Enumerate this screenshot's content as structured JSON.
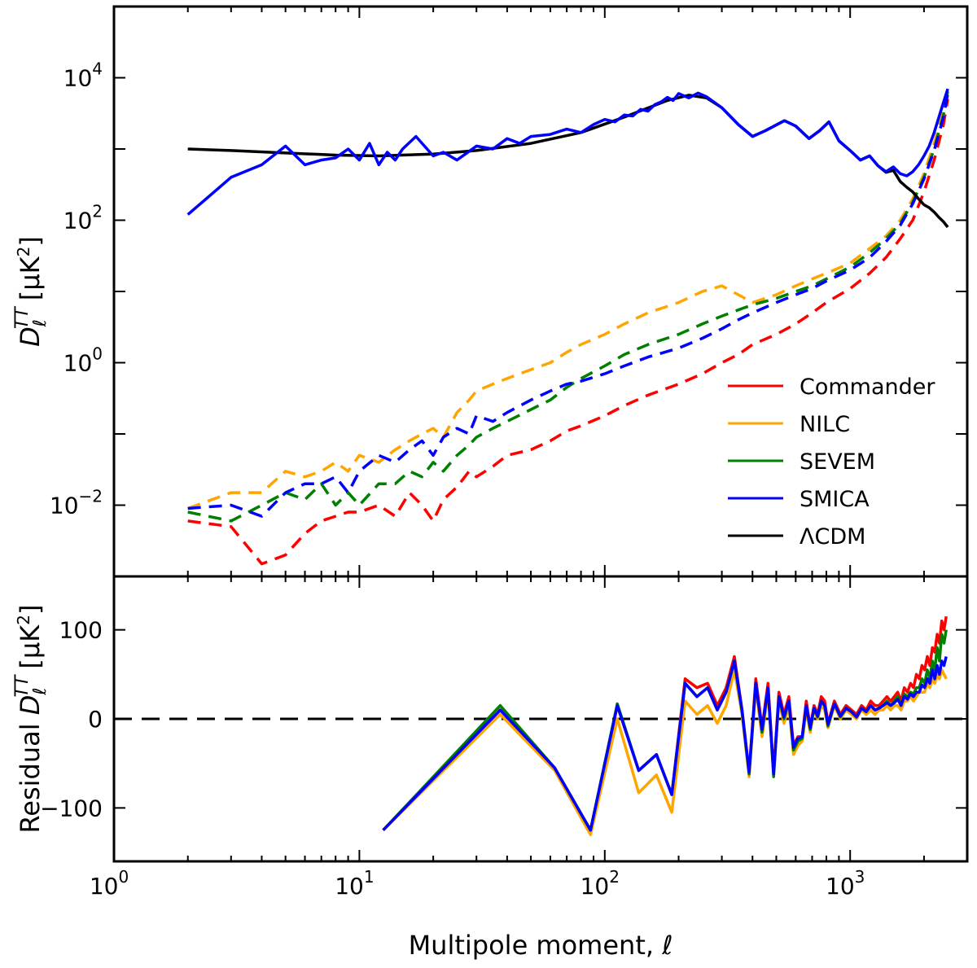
{
  "chart_data": [
    {
      "panel": "top",
      "type": "line",
      "xscale": "log",
      "yscale": "log",
      "xlim": [
        1,
        3000
      ],
      "ylim": [
        0.001,
        100000
      ],
      "xlabel": "",
      "ylabel": "D",
      "ylabel_sub": "ℓ",
      "ylabel_sup": "TT",
      "ylabel_unit_pre": "[μK",
      "ylabel_unit_sup": "2",
      "ylabel_unit_post": "]",
      "y_ticks": [
        {
          "value": 0.01,
          "base": "10",
          "exp": "−2"
        },
        {
          "value": 1,
          "base": "10",
          "exp": "0"
        },
        {
          "value": 100,
          "base": "10",
          "exp": "2"
        },
        {
          "value": 10000,
          "base": "10",
          "exp": "4"
        }
      ],
      "legend_position": "lower-right",
      "legend": [
        {
          "name": "Commander",
          "color": "#ff0000"
        },
        {
          "name": "NILC",
          "color": "#ffa500"
        },
        {
          "name": "SEVEM",
          "color": "#008000"
        },
        {
          "name": "SMICA",
          "color": "#0000ff"
        },
        {
          "name": "ΛCDM",
          "color": "#000000"
        }
      ],
      "series": [
        {
          "name": "ΛCDM",
          "color": "#000000",
          "style": "solid",
          "x": [
            2,
            3,
            5,
            8,
            12,
            20,
            30,
            50,
            80,
            120,
            180,
            220,
            260,
            300,
            350,
            400,
            450,
            540,
            600,
            680,
            750,
            820,
            900,
            1000,
            1100,
            1200,
            1300,
            1400,
            1500,
            1600,
            1700,
            1800,
            1900,
            2000,
            2100,
            2200,
            2300,
            2400,
            2500
          ],
          "y": [
            1000,
            950,
            880,
            820,
            800,
            850,
            950,
            1200,
            1700,
            2800,
            4800,
            5700,
            5200,
            3800,
            2200,
            1500,
            1800,
            2500,
            2100,
            1400,
            1800,
            2400,
            1300,
            950,
            700,
            800,
            580,
            470,
            500,
            350,
            290,
            250,
            200,
            165,
            150,
            130,
            110,
            95,
            80
          ]
        },
        {
          "name": "SMICA",
          "color": "#0000ff",
          "style": "solid",
          "x": [
            2,
            3,
            4,
            5,
            6,
            7,
            8,
            9,
            10,
            11,
            12,
            13,
            14,
            15,
            17,
            20,
            22,
            25,
            30,
            35,
            40,
            45,
            50,
            60,
            70,
            80,
            90,
            100,
            110,
            120,
            130,
            140,
            150,
            160,
            170,
            180,
            190,
            200,
            220,
            240,
            260,
            300,
            350,
            400,
            450,
            540,
            600,
            680,
            750,
            820,
            900,
            1000,
            1100,
            1200,
            1300,
            1400,
            1500,
            1600,
            1700,
            1800,
            1900,
            2000,
            2100,
            2200,
            2300,
            2400,
            2500
          ],
          "y": [
            120,
            400,
            600,
            1100,
            600,
            700,
            750,
            1000,
            700,
            1200,
            600,
            900,
            700,
            1000,
            1500,
            800,
            900,
            700,
            1100,
            1000,
            1400,
            1200,
            1500,
            1600,
            1900,
            1700,
            2200,
            2600,
            2400,
            3000,
            2900,
            3600,
            3400,
            4200,
            4600,
            5300,
            4800,
            6000,
            5200,
            6100,
            5400,
            3800,
            2200,
            1500,
            1800,
            2500,
            2100,
            1400,
            1800,
            2400,
            1300,
            950,
            700,
            800,
            580,
            480,
            560,
            450,
            420,
            480,
            600,
            800,
            1100,
            1700,
            2800,
            4500,
            7000
          ]
        },
        {
          "name": "Commander",
          "color": "#ff0000",
          "style": "dashed",
          "x": [
            2,
            3,
            4,
            5,
            6,
            7,
            8,
            9,
            10,
            12,
            14,
            16,
            18,
            20,
            22,
            25,
            28,
            30,
            35,
            40,
            50,
            60,
            70,
            80,
            100,
            120,
            150,
            200,
            250,
            300,
            350,
            400,
            500,
            600,
            700,
            800,
            1000,
            1200,
            1400,
            1600,
            1800,
            2000,
            2200,
            2400,
            2500
          ],
          "y": [
            0.006,
            0.005,
            0.0015,
            0.002,
            0.004,
            0.006,
            0.007,
            0.008,
            0.008,
            0.01,
            0.007,
            0.015,
            0.01,
            0.006,
            0.012,
            0.018,
            0.03,
            0.025,
            0.035,
            0.05,
            0.06,
            0.08,
            0.11,
            0.13,
            0.18,
            0.25,
            0.35,
            0.5,
            0.7,
            1.0,
            1.3,
            1.8,
            2.5,
            3.5,
            5,
            7,
            11,
            18,
            30,
            55,
            100,
            250,
            700,
            2200,
            5000
          ]
        },
        {
          "name": "NILC",
          "color": "#ffa500",
          "style": "dashed",
          "x": [
            2,
            3,
            4,
            5,
            6,
            7,
            8,
            9,
            10,
            12,
            14,
            16,
            18,
            20,
            22,
            25,
            28,
            30,
            35,
            40,
            50,
            60,
            70,
            80,
            100,
            120,
            150,
            200,
            250,
            300,
            350,
            400,
            450,
            500,
            600,
            700,
            800,
            1000,
            1200,
            1400,
            1600,
            1800,
            2000,
            2200,
            2400,
            2500
          ],
          "y": [
            0.009,
            0.015,
            0.015,
            0.03,
            0.025,
            0.03,
            0.04,
            0.03,
            0.05,
            0.04,
            0.06,
            0.08,
            0.1,
            0.12,
            0.09,
            0.2,
            0.3,
            0.4,
            0.5,
            0.6,
            0.8,
            1.0,
            1.4,
            1.8,
            2.5,
            3.5,
            5,
            7,
            10,
            12,
            9,
            7,
            8,
            9,
            12,
            15,
            18,
            25,
            40,
            60,
            100,
            200,
            450,
            1200,
            3500,
            7000
          ]
        },
        {
          "name": "SEVEM",
          "color": "#008000",
          "style": "dashed",
          "x": [
            2,
            3,
            4,
            5,
            6,
            7,
            8,
            9,
            10,
            12,
            14,
            16,
            18,
            20,
            22,
            25,
            28,
            30,
            35,
            40,
            50,
            60,
            70,
            80,
            100,
            120,
            150,
            200,
            250,
            300,
            350,
            400,
            500,
            600,
            700,
            800,
            1000,
            1200,
            1400,
            1600,
            1800,
            2000,
            2200,
            2400,
            2500
          ],
          "y": [
            0.008,
            0.006,
            0.01,
            0.015,
            0.012,
            0.02,
            0.01,
            0.015,
            0.01,
            0.02,
            0.02,
            0.03,
            0.025,
            0.04,
            0.03,
            0.05,
            0.07,
            0.09,
            0.12,
            0.15,
            0.22,
            0.3,
            0.45,
            0.6,
            0.9,
            1.3,
            1.8,
            2.5,
            3.5,
            4.5,
            5.5,
            6.5,
            8,
            10,
            12,
            15,
            22,
            35,
            55,
            90,
            180,
            400,
            1000,
            3000,
            6500
          ]
        },
        {
          "name": "SMICA",
          "color": "#0000ff",
          "style": "dashed",
          "x": [
            2,
            3,
            4,
            5,
            6,
            7,
            8,
            9,
            10,
            12,
            14,
            16,
            18,
            20,
            22,
            25,
            28,
            30,
            35,
            40,
            50,
            60,
            70,
            80,
            100,
            120,
            150,
            200,
            250,
            300,
            350,
            400,
            500,
            600,
            700,
            800,
            1000,
            1200,
            1400,
            1600,
            1800,
            2000,
            2200,
            2400,
            2500
          ],
          "y": [
            0.009,
            0.01,
            0.007,
            0.015,
            0.02,
            0.02,
            0.025,
            0.015,
            0.03,
            0.05,
            0.04,
            0.06,
            0.08,
            0.05,
            0.09,
            0.12,
            0.1,
            0.18,
            0.15,
            0.2,
            0.3,
            0.4,
            0.5,
            0.55,
            0.7,
            0.9,
            1.2,
            1.6,
            2.2,
            3,
            4,
            5,
            7,
            9,
            11,
            14,
            20,
            30,
            50,
            85,
            170,
            380,
            950,
            2800,
            6000
          ]
        }
      ]
    },
    {
      "panel": "bottom",
      "type": "line",
      "xscale": "log",
      "yscale": "linear",
      "xlim": [
        1,
        3000
      ],
      "ylim": [
        -160,
        160
      ],
      "xlabel_text": "Multipole moment, ",
      "xlabel_symbol": "ℓ",
      "ylabel_pre": "Residual ",
      "ylabel": "D",
      "ylabel_sub": "ℓ",
      "ylabel_sup": "TT",
      "ylabel_unit_pre": "[μK",
      "ylabel_unit_sup": "2",
      "ylabel_unit_post": "]",
      "y_ticks": [
        {
          "value": -100,
          "label": "−100"
        },
        {
          "value": 0,
          "label": "0"
        },
        {
          "value": 100,
          "label": "100"
        }
      ],
      "x_ticks": [
        {
          "value": 1,
          "base": "10",
          "exp": "0"
        },
        {
          "value": 10,
          "base": "10",
          "exp": "1"
        },
        {
          "value": 100,
          "base": "10",
          "exp": "2"
        },
        {
          "value": 1000,
          "base": "10",
          "exp": "3"
        }
      ],
      "zero_line": {
        "value": 0,
        "style": "dashed",
        "color": "#000000"
      },
      "x": [
        12.5,
        37.5,
        62.5,
        87.5,
        112.5,
        137.5,
        162.5,
        187.5,
        212.5,
        237.5,
        262.5,
        287.5,
        312.5,
        337.5,
        362.5,
        387.5,
        412.5,
        437.5,
        462.5,
        487.5,
        512.5,
        537.5,
        562.5,
        587.5,
        612.5,
        637.5,
        662.5,
        687.5,
        712.5,
        737.5,
        762.5,
        787.5,
        812.5,
        862.5,
        912.5,
        962.5,
        1012.5,
        1062.5,
        1112.5,
        1162.5,
        1212.5,
        1262.5,
        1312.5,
        1362.5,
        1412.5,
        1462.5,
        1512.5,
        1562.5,
        1612.5,
        1662.5,
        1712.5,
        1762.5,
        1812.5,
        1862.5,
        1912.5,
        1962.5,
        2012.5,
        2062.5,
        2112.5,
        2162.5,
        2212.5,
        2262.5,
        2312.5,
        2362.5,
        2412.5,
        2462.5
      ],
      "series": [
        {
          "name": "Commander",
          "color": "#ff0000",
          "y": [
            -125,
            10,
            -55,
            -125,
            15,
            -58,
            -40,
            -85,
            45,
            35,
            40,
            15,
            35,
            70,
            10,
            -60,
            45,
            -10,
            40,
            -60,
            30,
            5,
            25,
            -30,
            -20,
            -20,
            20,
            -10,
            15,
            5,
            25,
            20,
            -5,
            20,
            5,
            15,
            10,
            5,
            15,
            10,
            20,
            15,
            15,
            20,
            25,
            20,
            25,
            30,
            20,
            35,
            30,
            40,
            35,
            50,
            45,
            60,
            55,
            70,
            60,
            80,
            75,
            95,
            85,
            110,
            100,
            115
          ]
        },
        {
          "name": "NILC",
          "color": "#ffa500",
          "y": [
            -125,
            5,
            -58,
            -130,
            0,
            -83,
            -63,
            -105,
            20,
            5,
            15,
            -5,
            15,
            55,
            5,
            -65,
            35,
            -20,
            30,
            -60,
            20,
            -5,
            15,
            -40,
            -30,
            -25,
            10,
            -15,
            10,
            0,
            15,
            10,
            -10,
            15,
            0,
            10,
            5,
            0,
            10,
            5,
            10,
            5,
            10,
            10,
            15,
            10,
            15,
            15,
            10,
            20,
            20,
            25,
            20,
            25,
            30,
            30,
            30,
            40,
            35,
            45,
            40,
            50,
            45,
            55,
            50,
            45
          ]
        },
        {
          "name": "SEVEM",
          "color": "#008000",
          "y": [
            -125,
            15,
            -55,
            -125,
            17,
            -58,
            -40,
            -85,
            40,
            25,
            35,
            10,
            30,
            65,
            8,
            -62,
            40,
            -15,
            35,
            -65,
            25,
            0,
            20,
            -35,
            -25,
            -22,
            15,
            -12,
            12,
            2,
            20,
            15,
            -8,
            17,
            2,
            12,
            8,
            2,
            12,
            8,
            15,
            10,
            12,
            15,
            20,
            15,
            20,
            25,
            15,
            28,
            25,
            30,
            28,
            35,
            35,
            45,
            40,
            55,
            45,
            65,
            55,
            80,
            65,
            95,
            85,
            100
          ]
        },
        {
          "name": "SMICA",
          "color": "#0000ff",
          "y": [
            -125,
            10,
            -55,
            -125,
            15,
            -58,
            -40,
            -85,
            40,
            25,
            35,
            10,
            30,
            65,
            10,
            -60,
            40,
            -12,
            35,
            -62,
            25,
            2,
            20,
            -32,
            -22,
            -20,
            15,
            -10,
            12,
            3,
            20,
            15,
            -6,
            17,
            3,
            12,
            8,
            2,
            12,
            8,
            15,
            10,
            12,
            15,
            18,
            15,
            18,
            22,
            15,
            25,
            22,
            28,
            25,
            30,
            30,
            38,
            35,
            45,
            40,
            55,
            45,
            60,
            50,
            65,
            60,
            70
          ]
        }
      ]
    }
  ]
}
